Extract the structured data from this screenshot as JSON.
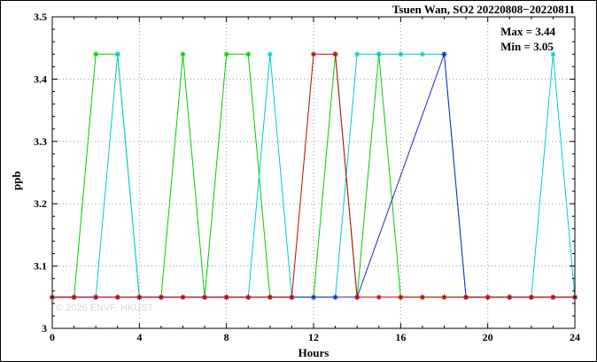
{
  "chart_data": {
    "type": "line",
    "title": "Tsuen Wan, SO2 20220808−20220811",
    "xlabel": "Hours",
    "ylabel": "ppb",
    "xlim": [
      0,
      24
    ],
    "ylim": [
      3.0,
      3.5
    ],
    "xticks": [
      0,
      4,
      8,
      12,
      16,
      20,
      24
    ],
    "yticks": [
      3.0,
      3.1,
      3.2,
      3.3,
      3.4,
      3.5
    ],
    "x_minor_step": 1,
    "y_minor_step": 0.02,
    "grid": true,
    "legend_position": "none",
    "annotations": {
      "max": "Max = 3.44",
      "min": "Min = 3.05"
    },
    "stats": {
      "max_value": 3.44,
      "min_value": 3.05
    },
    "watermark": "© 2026 ENVF, HKUST",
    "series": [
      {
        "name": "series-green",
        "color": "#00cc00",
        "points": [
          [
            0,
            3.05
          ],
          [
            1,
            3.05
          ],
          [
            2,
            3.44
          ],
          [
            3,
            3.44
          ],
          [
            4,
            3.05
          ],
          [
            5,
            3.05
          ],
          [
            6,
            3.44
          ],
          [
            7,
            3.05
          ],
          [
            8,
            3.44
          ],
          [
            9,
            3.44
          ],
          [
            10,
            3.05
          ],
          [
            11,
            3.05
          ],
          [
            12,
            3.05
          ],
          [
            13,
            3.44
          ],
          [
            14,
            3.05
          ],
          [
            15,
            3.44
          ],
          [
            16,
            3.05
          ],
          [
            17,
            3.05
          ],
          [
            18,
            3.05
          ],
          [
            19,
            3.05
          ],
          [
            20,
            3.05
          ],
          [
            21,
            3.05
          ],
          [
            22,
            3.05
          ],
          [
            23,
            3.05
          ],
          [
            24,
            3.05
          ]
        ]
      },
      {
        "name": "series-cyan",
        "color": "#00cccc",
        "points": [
          [
            0,
            3.05
          ],
          [
            1,
            3.05
          ],
          [
            2,
            3.05
          ],
          [
            3,
            3.44
          ],
          [
            4,
            3.05
          ],
          [
            5,
            3.05
          ],
          [
            6,
            3.05
          ],
          [
            7,
            3.05
          ],
          [
            8,
            3.05
          ],
          [
            9,
            3.05
          ],
          [
            10,
            3.44
          ],
          [
            11,
            3.05
          ],
          [
            12,
            3.05
          ],
          [
            13,
            3.05
          ],
          [
            14,
            3.44
          ],
          [
            15,
            3.44
          ],
          [
            16,
            3.44
          ],
          [
            17,
            3.44
          ],
          [
            18,
            3.44
          ],
          [
            19,
            3.05
          ],
          [
            20,
            3.05
          ],
          [
            21,
            3.05
          ],
          [
            22,
            3.05
          ],
          [
            23,
            3.44
          ],
          [
            24,
            3.05
          ]
        ]
      },
      {
        "name": "series-blue",
        "color": "#2222cc",
        "points": [
          [
            0,
            3.05
          ],
          [
            1,
            3.05
          ],
          [
            2,
            3.05
          ],
          [
            3,
            3.05
          ],
          [
            4,
            3.05
          ],
          [
            5,
            3.05
          ],
          [
            6,
            3.05
          ],
          [
            7,
            3.05
          ],
          [
            8,
            3.05
          ],
          [
            9,
            3.05
          ],
          [
            10,
            3.05
          ],
          [
            11,
            3.05
          ],
          [
            12,
            3.05
          ],
          [
            13,
            3.05
          ],
          [
            14,
            3.05
          ],
          [
            18,
            3.44
          ],
          [
            19,
            3.05
          ],
          [
            20,
            3.05
          ],
          [
            21,
            3.05
          ],
          [
            22,
            3.05
          ],
          [
            23,
            3.05
          ],
          [
            24,
            3.05
          ]
        ]
      },
      {
        "name": "series-red",
        "color": "#cc0000",
        "points": [
          [
            0,
            3.05
          ],
          [
            1,
            3.05
          ],
          [
            2,
            3.05
          ],
          [
            3,
            3.05
          ],
          [
            4,
            3.05
          ],
          [
            5,
            3.05
          ],
          [
            6,
            3.05
          ],
          [
            7,
            3.05
          ],
          [
            8,
            3.05
          ],
          [
            9,
            3.05
          ],
          [
            10,
            3.05
          ],
          [
            11,
            3.05
          ],
          [
            12,
            3.44
          ],
          [
            13,
            3.44
          ],
          [
            14,
            3.05
          ],
          [
            15,
            3.05
          ],
          [
            16,
            3.05
          ],
          [
            17,
            3.05
          ],
          [
            18,
            3.05
          ],
          [
            19,
            3.05
          ],
          [
            20,
            3.05
          ],
          [
            21,
            3.05
          ],
          [
            22,
            3.05
          ],
          [
            23,
            3.05
          ],
          [
            24,
            3.05
          ]
        ]
      }
    ]
  }
}
